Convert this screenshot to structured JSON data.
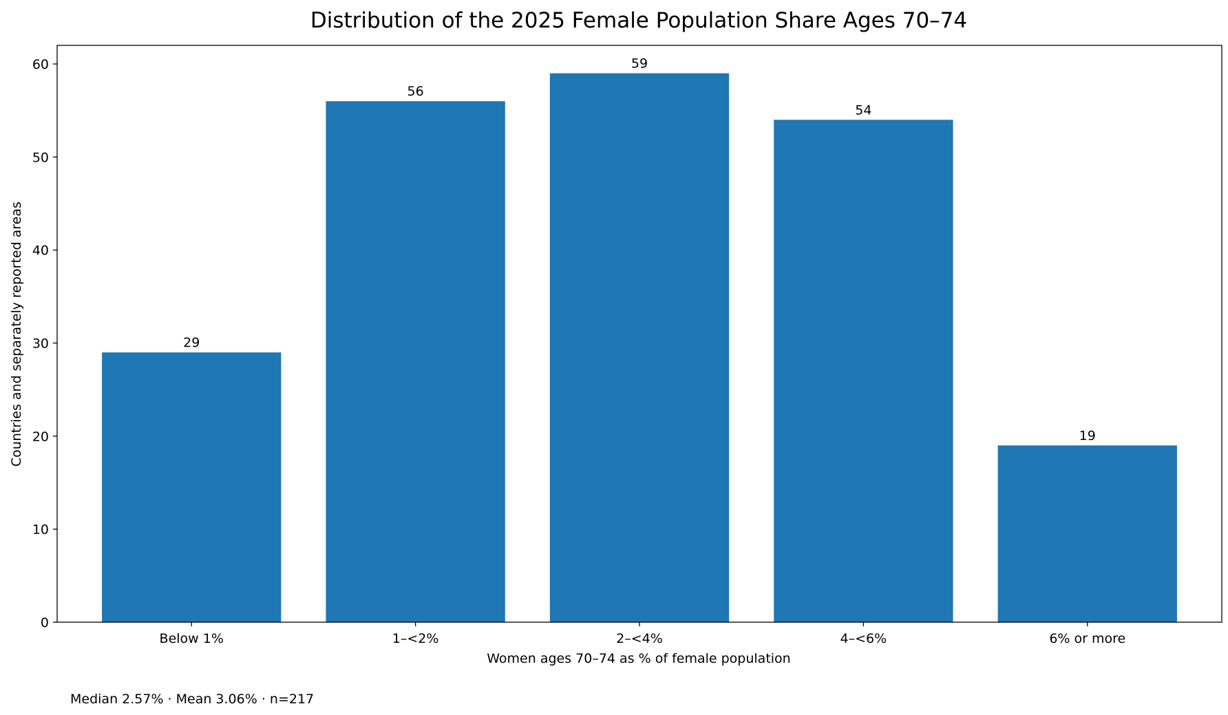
{
  "chart_data": {
    "type": "bar",
    "title": "Distribution of the 2025 Female Population Share Ages 70–74",
    "xlabel": "Women ages 70–74 as % of female population",
    "ylabel": "Countries and separately reported areas",
    "categories": [
      "Below 1%",
      "1–<2%",
      "2–<4%",
      "4–<6%",
      "6% or more"
    ],
    "values": [
      29,
      56,
      59,
      54,
      19
    ],
    "data_labels": [
      "29",
      "56",
      "59",
      "54",
      "19"
    ],
    "ylim": [
      0,
      62
    ],
    "yticks": [
      0,
      10,
      20,
      30,
      40,
      50,
      60
    ],
    "grid": false,
    "bar_color": "#1f77b4",
    "annotation": "Median 2.57% · Mean 3.06% · n=217"
  }
}
